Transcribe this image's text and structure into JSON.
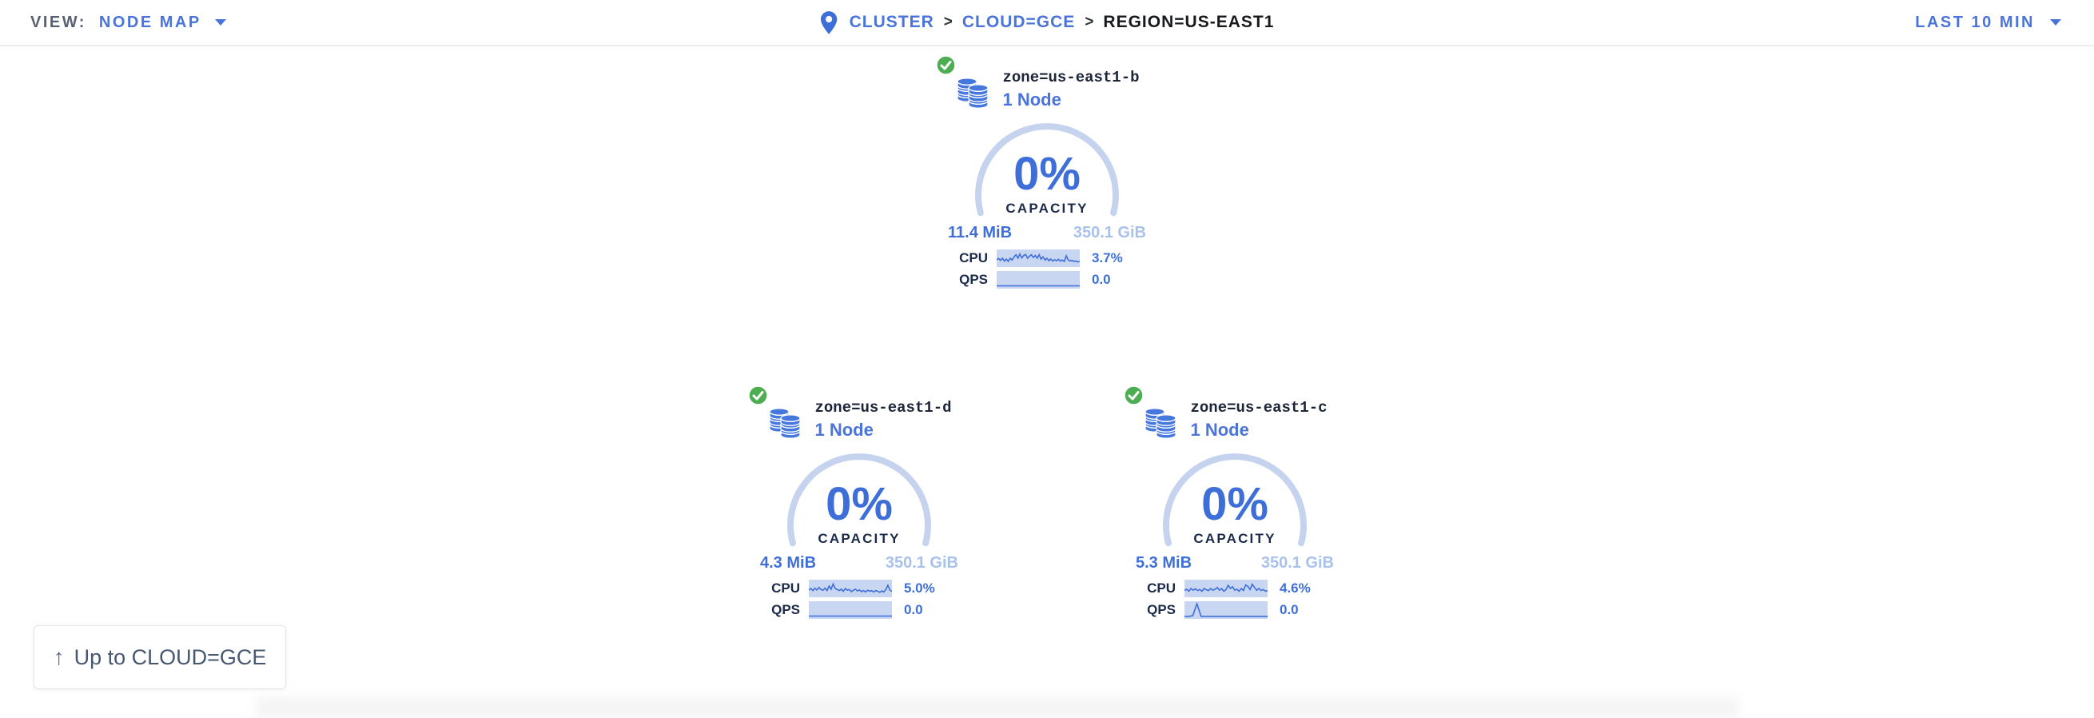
{
  "topbar": {
    "view_label": "VIEW:",
    "view_value": "NODE MAP",
    "breadcrumb": {
      "separator": ">",
      "items": [
        {
          "label": "CLUSTER"
        },
        {
          "label": "CLOUD=GCE"
        },
        {
          "label": "REGION=US-EAST1"
        }
      ]
    },
    "time_range": "LAST 10 MIN"
  },
  "nodes": [
    {
      "title": "zone=us-east1-b",
      "subtitle": "1 Node",
      "status": "healthy",
      "capacity_pct": "0%",
      "capacity_label": "CAPACITY",
      "used": "11.4 MiB",
      "total": "350.1 GiB",
      "cpu_label": "CPU",
      "cpu_value": "3.7%",
      "qps_label": "QPS",
      "qps_value": "0.0",
      "cpu_spark": [
        0.58,
        0.52,
        0.62,
        0.5,
        0.66,
        0.55,
        0.68,
        0.5,
        0.6,
        0.42,
        0.3,
        0.5,
        0.26,
        0.48,
        0.34,
        0.28,
        0.5,
        0.38,
        0.3,
        0.46,
        0.34,
        0.5,
        0.3,
        0.55,
        0.42,
        0.6,
        0.5,
        0.64,
        0.54,
        0.66,
        0.58,
        0.64,
        0.56,
        0.66,
        0.6,
        0.68,
        0.36,
        0.58,
        0.66,
        0.62,
        0.68,
        0.66,
        0.7,
        0.68
      ],
      "qps_spark": [
        0.84,
        0.84,
        0.84,
        0.84,
        0.84,
        0.84,
        0.84,
        0.84,
        0.84,
        0.84,
        0.84
      ]
    },
    {
      "title": "zone=us-east1-d",
      "subtitle": "1 Node",
      "status": "healthy",
      "capacity_pct": "0%",
      "capacity_label": "CAPACITY",
      "used": "4.3 MiB",
      "total": "350.1 GiB",
      "cpu_label": "CPU",
      "cpu_value": "5.0%",
      "qps_label": "QPS",
      "qps_value": "0.0",
      "cpu_spark": [
        0.6,
        0.5,
        0.62,
        0.48,
        0.58,
        0.44,
        0.56,
        0.6,
        0.48,
        0.62,
        0.36,
        0.54,
        0.24,
        0.5,
        0.56,
        0.62,
        0.54,
        0.66,
        0.5,
        0.6,
        0.56,
        0.68,
        0.6,
        0.54,
        0.64,
        0.58,
        0.68,
        0.62,
        0.7,
        0.6,
        0.66,
        0.62,
        0.7,
        0.62,
        0.66,
        0.72,
        0.64,
        0.7,
        0.56,
        0.32,
        0.6,
        0.66
      ],
      "qps_spark": [
        0.84,
        0.84,
        0.84,
        0.84,
        0.84,
        0.84,
        0.84,
        0.84,
        0.84,
        0.84,
        0.84
      ]
    },
    {
      "title": "zone=us-east1-c",
      "subtitle": "1 Node",
      "status": "healthy",
      "capacity_pct": "0%",
      "capacity_label": "CAPACITY",
      "used": "5.3 MiB",
      "total": "350.1 GiB",
      "cpu_label": "CPU",
      "cpu_value": "4.6%",
      "qps_label": "QPS",
      "qps_value": "0.0",
      "cpu_spark": [
        0.62,
        0.54,
        0.66,
        0.5,
        0.6,
        0.52,
        0.62,
        0.56,
        0.66,
        0.5,
        0.58,
        0.62,
        0.5,
        0.6,
        0.54,
        0.44,
        0.6,
        0.5,
        0.66,
        0.56,
        0.32,
        0.5,
        0.4,
        0.6,
        0.54,
        0.66,
        0.5,
        0.62,
        0.3,
        0.38,
        0.56,
        0.26,
        0.44,
        0.6,
        0.5,
        0.62,
        0.56,
        0.66,
        0.62
      ],
      "qps_spark": [
        0.86,
        0.86,
        0.82,
        0.14,
        0.86,
        0.86,
        0.86,
        0.86,
        0.86,
        0.86,
        0.86,
        0.86,
        0.86,
        0.86,
        0.86,
        0.86,
        0.86,
        0.86,
        0.86,
        0.86,
        0.86
      ]
    }
  ],
  "up_button": {
    "label": "Up to CLOUD=GCE"
  },
  "colors": {
    "accent": "#3e6fd9",
    "link_blue": "#4a74da",
    "arc_track": "#c5d3ef",
    "spark_bg": "#c9d6f2",
    "light_value": "#a9c2ec",
    "navy": "#1b2a4a",
    "healthy_green": "#4cae50"
  }
}
